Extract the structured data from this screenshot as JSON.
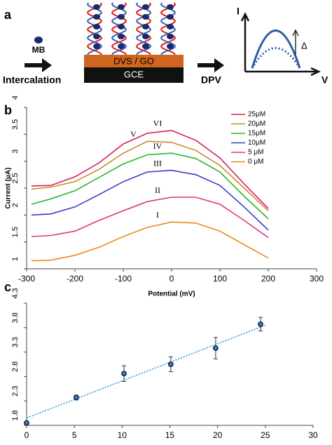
{
  "panel_labels": [
    "a",
    "b",
    "c"
  ],
  "diagram": {
    "mb": "MB",
    "step1": "Intercalation",
    "layer_top": "DVS / GO",
    "layer_bottom": "GCE",
    "step2": "DPV",
    "axis_y": "I",
    "axis_x": "V",
    "delta": "Δ"
  },
  "chart_data": [
    {
      "type": "line",
      "x_label": "Potential (mV)",
      "y_label": "Current (μA)",
      "x": [
        -290,
        -250,
        -200,
        -150,
        -100,
        -50,
        0,
        50,
        100,
        150,
        200
      ],
      "xlim": [
        -300,
        300
      ],
      "xticks": [
        -300,
        -200,
        -100,
        0,
        100,
        200,
        300
      ],
      "ylim": [
        1,
        4
      ],
      "yticks": [
        1,
        1.5,
        2,
        2.5,
        3,
        3.5,
        4
      ],
      "legend": "top-right",
      "series": [
        {
          "name": "25μM",
          "label": "VI",
          "color": "#d4205f",
          "values": [
            2.54,
            2.55,
            2.71,
            2.97,
            3.32,
            3.52,
            3.57,
            3.39,
            3.06,
            2.58,
            2.12
          ]
        },
        {
          "name": "20μM",
          "label": "V",
          "color": "#c98a2c",
          "values": [
            2.48,
            2.52,
            2.62,
            2.85,
            3.15,
            3.37,
            3.35,
            3.2,
            2.92,
            2.5,
            2.08
          ]
        },
        {
          "name": "15μM",
          "label": "IV",
          "color": "#2db52d",
          "values": [
            2.2,
            2.3,
            2.45,
            2.7,
            2.95,
            3.12,
            3.15,
            3.05,
            2.8,
            2.35,
            1.93
          ]
        },
        {
          "name": "10μM",
          "label": "III",
          "color": "#3a3ad0",
          "values": [
            2.0,
            2.02,
            2.15,
            2.38,
            2.62,
            2.8,
            2.83,
            2.75,
            2.55,
            2.15,
            1.72
          ]
        },
        {
          "name": "5 μM",
          "label": "II",
          "color": "#e0308a",
          "values": [
            1.6,
            1.62,
            1.7,
            1.9,
            2.08,
            2.25,
            2.33,
            2.33,
            2.2,
            1.9,
            1.58
          ]
        },
        {
          "name": "0 μM",
          "label": "I",
          "color": "#ec8a1a",
          "values": [
            1.15,
            1.16,
            1.25,
            1.4,
            1.6,
            1.77,
            1.87,
            1.85,
            1.7,
            1.45,
            1.2
          ]
        }
      ]
    },
    {
      "type": "scatter",
      "x": [
        0,
        5.2,
        10.2,
        15.1,
        19.8,
        24.5
      ],
      "values": [
        1.85,
        2.37,
        2.86,
        3.05,
        3.38,
        3.87
      ],
      "errors": [
        0.03,
        0.05,
        0.16,
        0.15,
        0.22,
        0.14
      ],
      "color": "#1f5f9a",
      "trendline": {
        "x": [
          0,
          25
        ],
        "values": [
          1.95,
          3.85
        ],
        "color": "#2a9bd0"
      },
      "xlim": [
        0,
        30
      ],
      "xticks": [
        0,
        5,
        10,
        15,
        20,
        25,
        30
      ],
      "ylim": [
        1.8,
        4.3
      ],
      "yticks": [
        1.8,
        2.3,
        2.8,
        3.3,
        3.8,
        4.3
      ]
    }
  ]
}
